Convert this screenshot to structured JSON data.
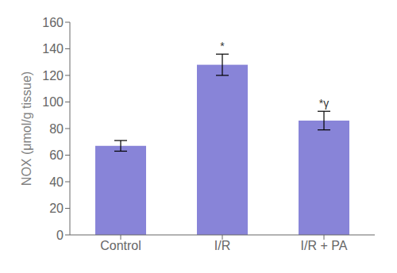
{
  "chart_data": {
    "type": "bar",
    "categories": [
      "Control",
      "I/R",
      "I/R + PA"
    ],
    "values": [
      67,
      128,
      86
    ],
    "errors": [
      4,
      8,
      7
    ],
    "annotations": [
      null,
      "*",
      "*γ"
    ],
    "y_label": "NOX (μmol/g tissue)",
    "ylim": [
      0,
      160
    ],
    "yticks": [
      0,
      20,
      40,
      60,
      80,
      100,
      120,
      140,
      160
    ],
    "color": "#8884d8",
    "grid": false
  }
}
